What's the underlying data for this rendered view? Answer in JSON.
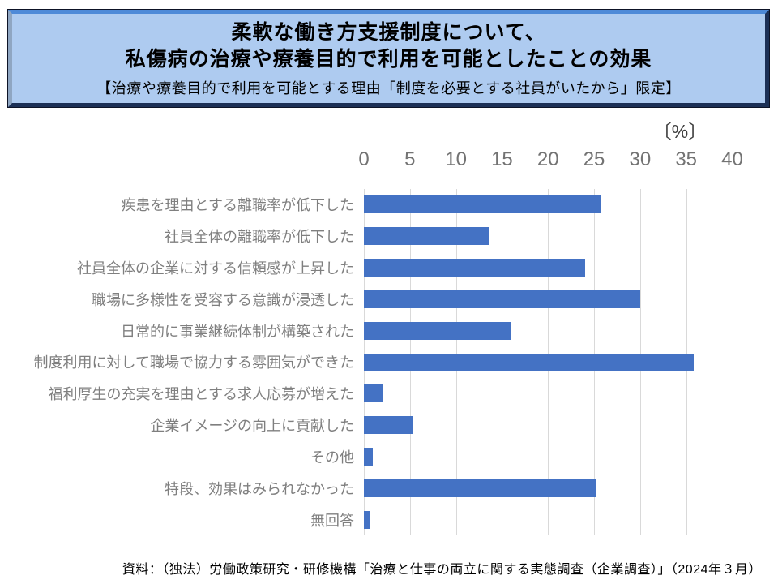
{
  "title_box": {
    "line1": "柔軟な働き方支援制度について、",
    "line2": "私傷病の治療や療養目的で利用を可能としたことの効果",
    "subtitle": "【治療や療養目的で利用を可能とする理由「制度を必要とする社員がいたから」限定】"
  },
  "chart_data": {
    "type": "bar",
    "orientation": "horizontal",
    "title": "柔軟な働き方支援制度について、私傷病の治療や療養目的で利用を可能としたことの効果",
    "subtitle": "【治療や療養目的で利用を可能とする理由「制度を必要とする社員がいたから」限定】",
    "unit_label": "〔%〕",
    "categories": [
      "疾患を理由とする離職率が低下した",
      "社員全体の離職率が低下した",
      "社員全体の企業に対する信頼感が上昇した",
      "職場に多様性を受容する意識が浸透した",
      "日常的に事業継続体制が構築された",
      "制度利用に対して職場で協力する雰囲気ができた",
      "福利厚生の充実を理由とする求人応募が増えた",
      "企業イメージの向上に貢献した",
      "その他",
      "特段、効果はみられなかった",
      "無回答"
    ],
    "values": [
      25.7,
      13.6,
      24.0,
      30.0,
      16.0,
      35.8,
      2.0,
      5.4,
      1.0,
      25.3,
      0.6
    ],
    "xlim": [
      0,
      40
    ],
    "xticks": [
      0,
      5,
      10,
      15,
      20,
      25,
      30,
      35,
      40
    ],
    "grid": true,
    "bar_color": "#4472C4",
    "gridline_color": "#D9D9D9",
    "tick_label_color": "#737373",
    "category_label_color": "#7F7F7F"
  },
  "source": "資料：（独法）労働政策研究・研修機構「治療と仕事の両立に関する実態調査（企業調査）」（2024年３月）"
}
